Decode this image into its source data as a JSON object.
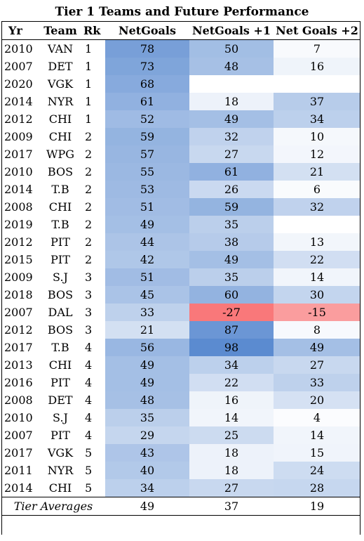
{
  "chart_data": {
    "type": "table",
    "title": "Tier 1 Teams and Future Performance",
    "columns": [
      "Yr",
      "Team",
      "Rk",
      "NetGoals",
      "NetGoals +1",
      "Net Goals +2"
    ],
    "rows": [
      {
        "yr": "2010",
        "team": "VAN",
        "rk": "1",
        "ng": 78,
        "ng1": 50,
        "ng2": 7
      },
      {
        "yr": "2007",
        "team": "DET",
        "rk": "1",
        "ng": 73,
        "ng1": 48,
        "ng2": 16
      },
      {
        "yr": "2020",
        "team": "VGK",
        "rk": "1",
        "ng": 68,
        "ng1": null,
        "ng2": null
      },
      {
        "yr": "2014",
        "team": "NYR",
        "rk": "1",
        "ng": 61,
        "ng1": 18,
        "ng2": 37
      },
      {
        "yr": "2012",
        "team": "CHI",
        "rk": "1",
        "ng": 52,
        "ng1": 49,
        "ng2": 34
      },
      {
        "yr": "2009",
        "team": "CHI",
        "rk": "2",
        "ng": 59,
        "ng1": 32,
        "ng2": 10
      },
      {
        "yr": "2017",
        "team": "WPG",
        "rk": "2",
        "ng": 57,
        "ng1": 27,
        "ng2": 12
      },
      {
        "yr": "2010",
        "team": "BOS",
        "rk": "2",
        "ng": 55,
        "ng1": 61,
        "ng2": 21
      },
      {
        "yr": "2014",
        "team": "T.B",
        "rk": "2",
        "ng": 53,
        "ng1": 26,
        "ng2": 6
      },
      {
        "yr": "2008",
        "team": "CHI",
        "rk": "2",
        "ng": 51,
        "ng1": 59,
        "ng2": 32
      },
      {
        "yr": "2019",
        "team": "T.B",
        "rk": "2",
        "ng": 49,
        "ng1": 35,
        "ng2": null
      },
      {
        "yr": "2012",
        "team": "PIT",
        "rk": "2",
        "ng": 44,
        "ng1": 38,
        "ng2": 13
      },
      {
        "yr": "2015",
        "team": "PIT",
        "rk": "2",
        "ng": 42,
        "ng1": 49,
        "ng2": 22
      },
      {
        "yr": "2009",
        "team": "S.J",
        "rk": "3",
        "ng": 51,
        "ng1": 35,
        "ng2": 14
      },
      {
        "yr": "2018",
        "team": "BOS",
        "rk": "3",
        "ng": 45,
        "ng1": 60,
        "ng2": 30
      },
      {
        "yr": "2007",
        "team": "DAL",
        "rk": "3",
        "ng": 33,
        "ng1": -27,
        "ng2": -15
      },
      {
        "yr": "2012",
        "team": "BOS",
        "rk": "3",
        "ng": 21,
        "ng1": 87,
        "ng2": 8
      },
      {
        "yr": "2017",
        "team": "T.B",
        "rk": "4",
        "ng": 56,
        "ng1": 98,
        "ng2": 49
      },
      {
        "yr": "2013",
        "team": "CHI",
        "rk": "4",
        "ng": 49,
        "ng1": 34,
        "ng2": 27
      },
      {
        "yr": "2016",
        "team": "PIT",
        "rk": "4",
        "ng": 49,
        "ng1": 22,
        "ng2": 33
      },
      {
        "yr": "2008",
        "team": "DET",
        "rk": "4",
        "ng": 48,
        "ng1": 16,
        "ng2": 20
      },
      {
        "yr": "2010",
        "team": "S.J",
        "rk": "4",
        "ng": 35,
        "ng1": 14,
        "ng2": 4
      },
      {
        "yr": "2007",
        "team": "PIT",
        "rk": "4",
        "ng": 29,
        "ng1": 25,
        "ng2": 14
      },
      {
        "yr": "2017",
        "team": "VGK",
        "rk": "5",
        "ng": 43,
        "ng1": 18,
        "ng2": 15
      },
      {
        "yr": "2011",
        "team": "NYR",
        "rk": "5",
        "ng": 40,
        "ng1": 18,
        "ng2": 24
      },
      {
        "yr": "2014",
        "team": "CHI",
        "rk": "5",
        "ng": 34,
        "ng1": 27,
        "ng2": 28
      }
    ],
    "footer": {
      "label": "Tier Averages",
      "ng": 49,
      "ng1": 37,
      "ng2": 19
    },
    "colors": {
      "high": "#5b8bd0",
      "low": "#f8696b",
      "neutral": "#ffffff"
    }
  }
}
